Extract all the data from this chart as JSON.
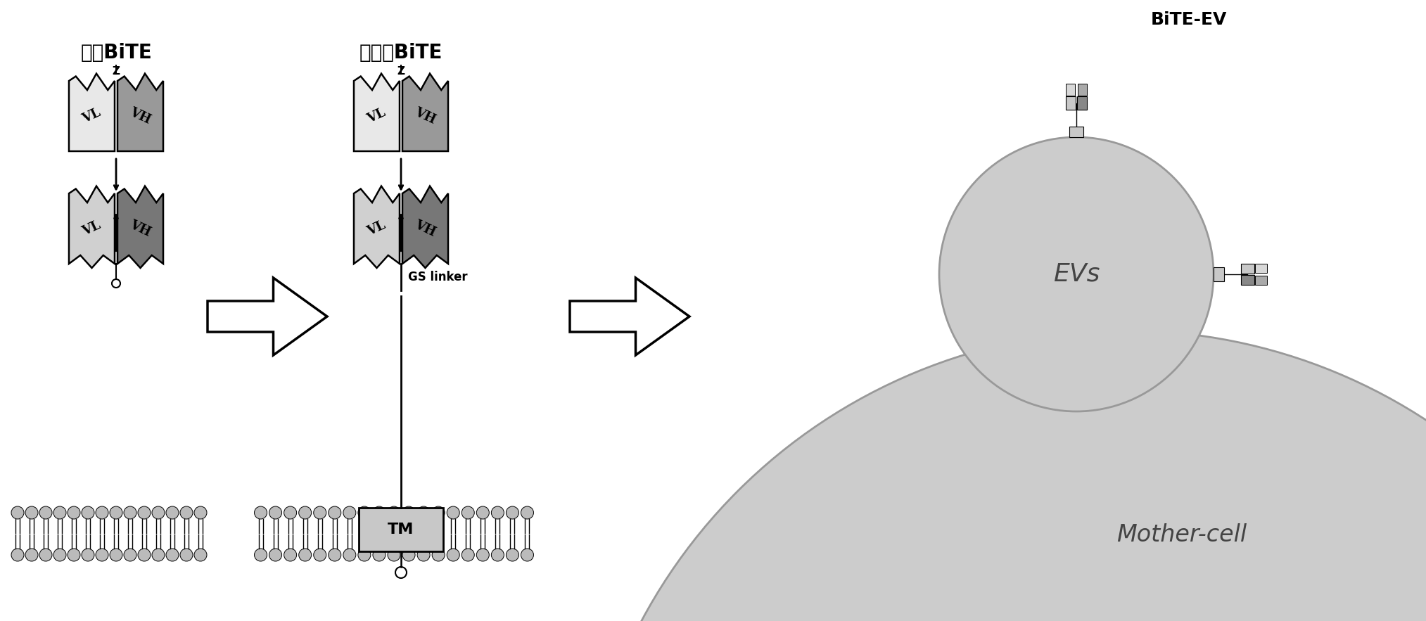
{
  "title": "BiTE-EV",
  "label_traditional": "传统BiTE",
  "label_applied": "本申请BiTE",
  "label_evs": "EVs",
  "label_mother_cell": "Mother-cell",
  "label_gs_linker": "GS linker",
  "label_tm": "TM",
  "bg_color": "#ffffff",
  "light_gray": "#e8e8e8",
  "medium_gray": "#aaaaaa",
  "dark_gray": "#666666",
  "membrane_gray": "#bbbbbb",
  "tm_gray": "#c8c8c8",
  "sphere_gray": "#cccccc",
  "sphere_edge": "#999999"
}
